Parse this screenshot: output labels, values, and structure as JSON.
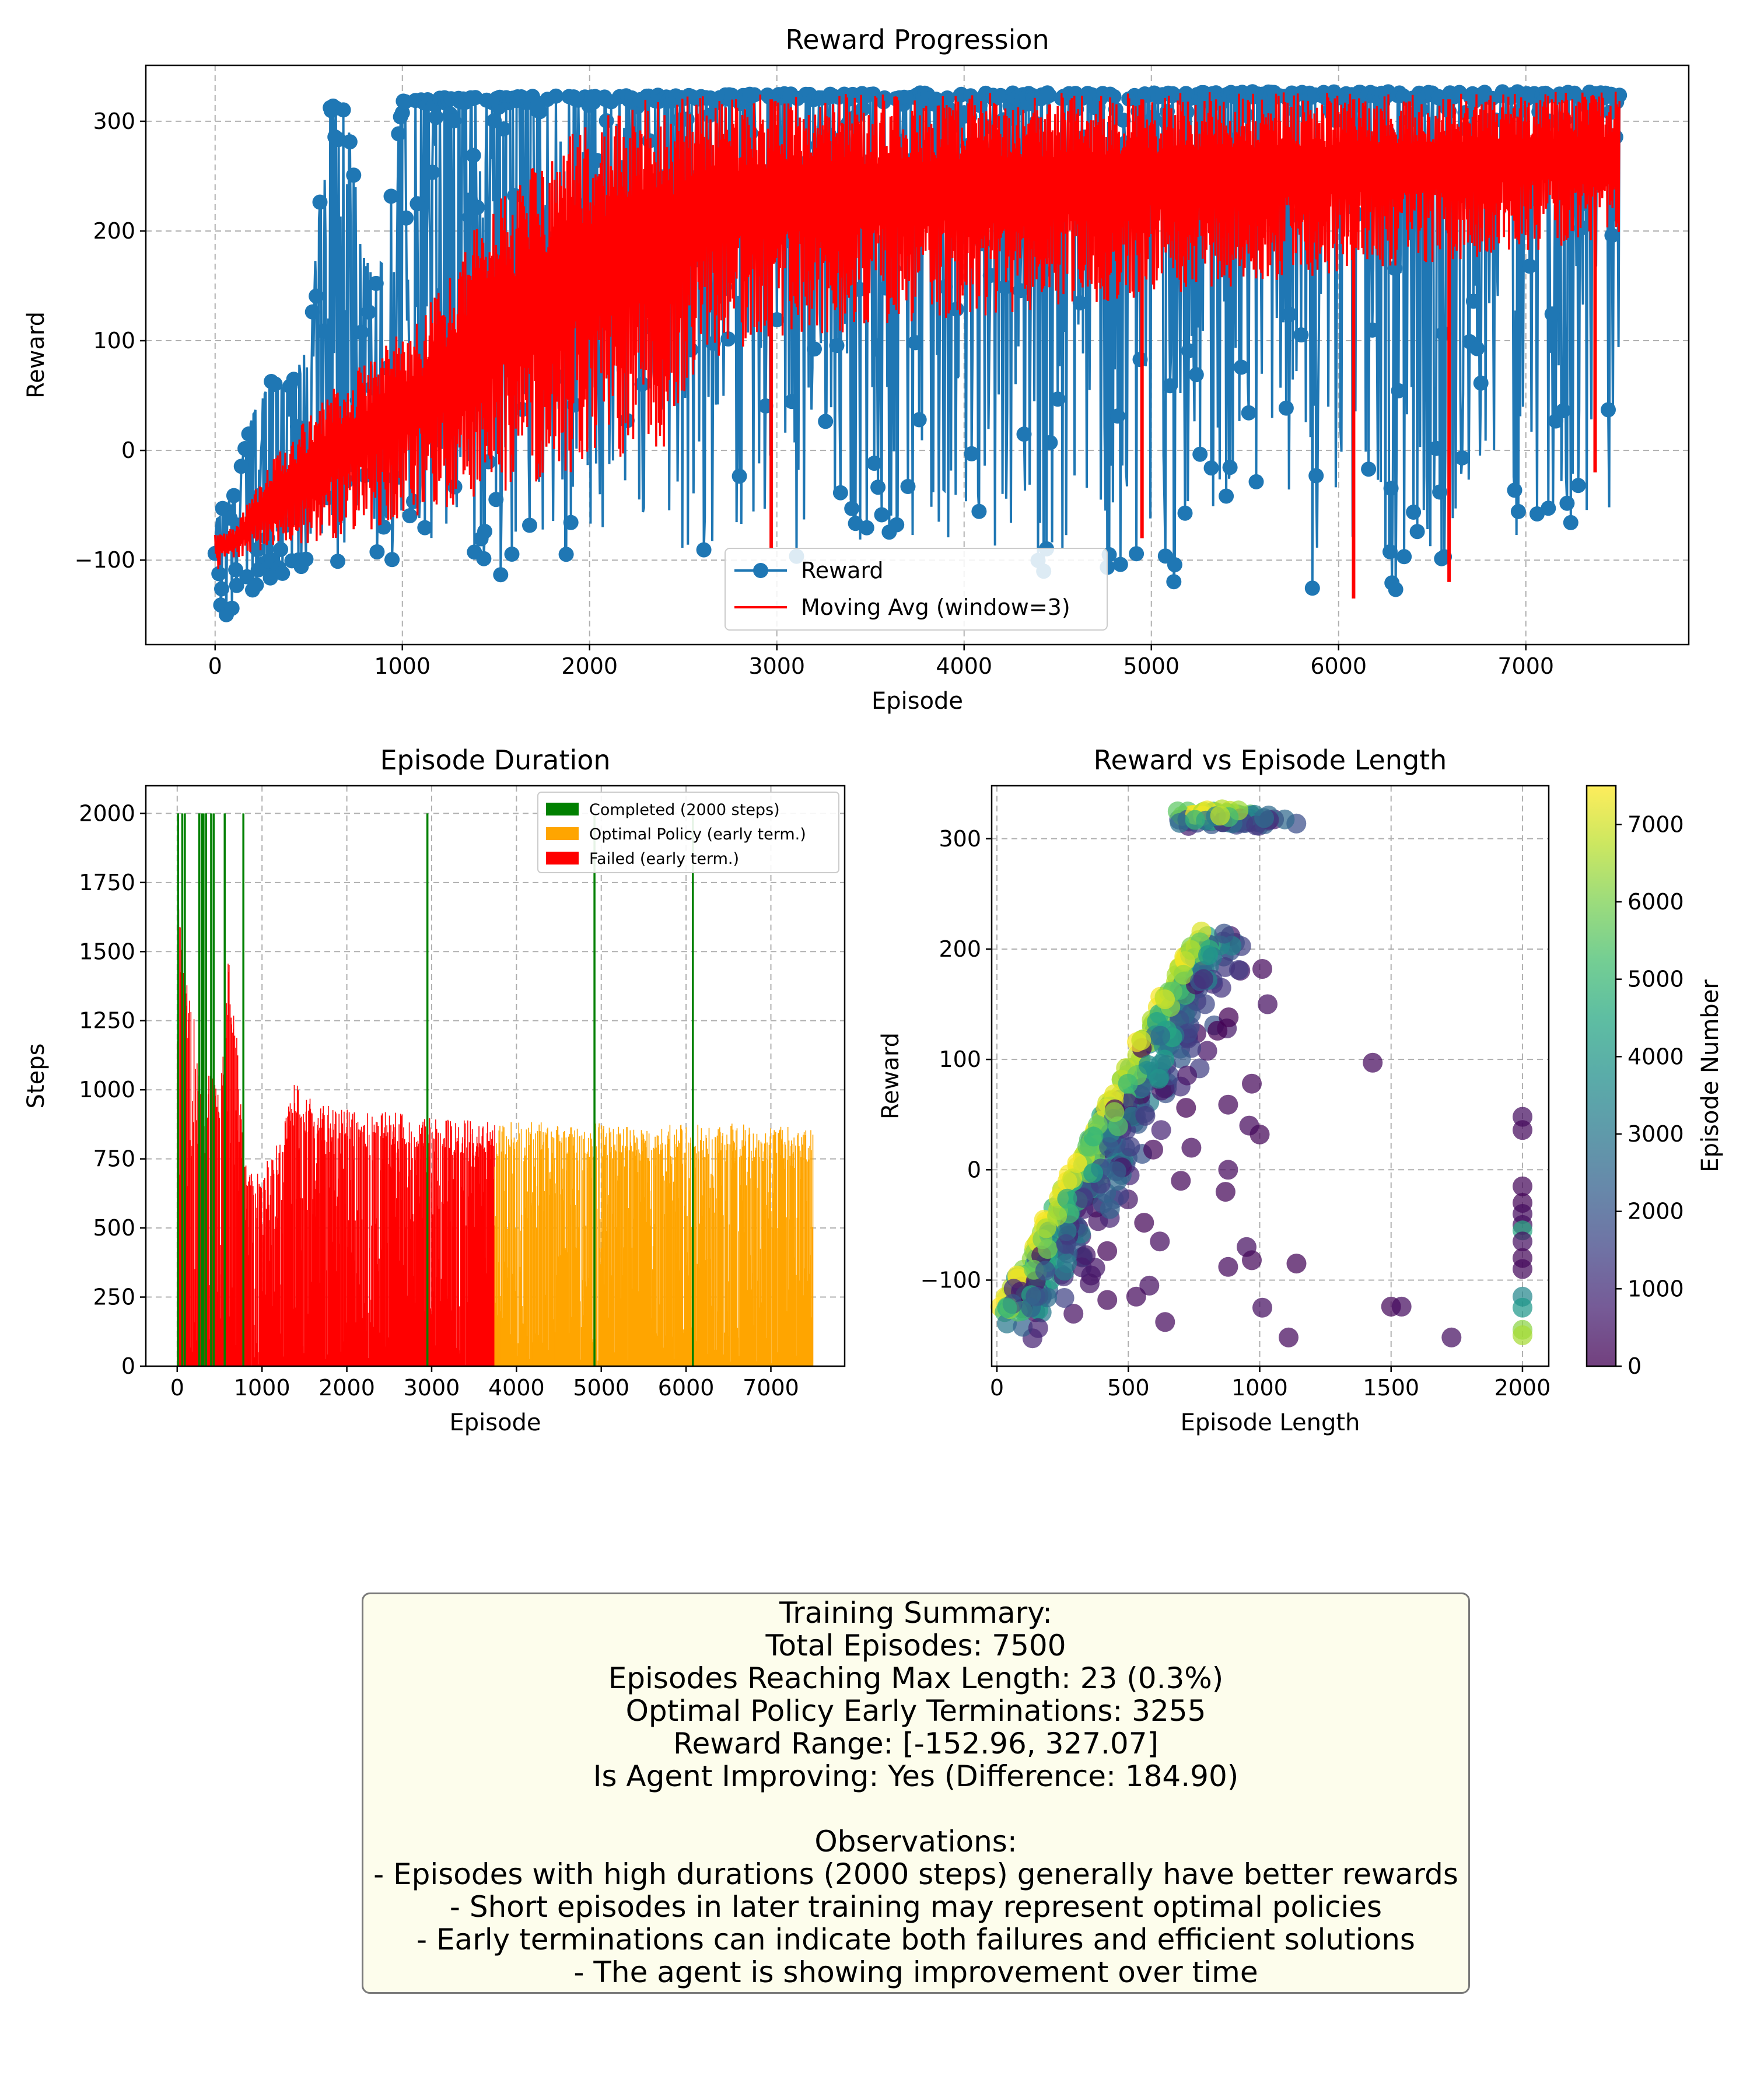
{
  "chart_data": [
    {
      "type": "line",
      "title": "Reward Progression",
      "xlabel": "Episode",
      "ylabel": "Reward",
      "xlim": [
        -370,
        7870
      ],
      "ylim": [
        -177,
        351
      ],
      "xticks": [
        0,
        1000,
        2000,
        3000,
        4000,
        5000,
        6000,
        7000
      ],
      "yticks": [
        -100,
        0,
        100,
        200,
        300
      ],
      "grid": true,
      "legend_position": "bottom-center",
      "series": [
        {
          "name": "Reward",
          "color": "#1f77b4",
          "marker": "circle",
          "x": [
            0,
            100,
            200,
            300,
            400,
            500,
            600,
            650,
            700,
            800,
            900,
            1000,
            1100,
            1200,
            1300,
            1400,
            1500,
            1700,
            2000,
            2500,
            3000,
            3500,
            4000,
            4500,
            5000,
            5500,
            6000,
            6500,
            7000,
            7500
          ],
          "mean": [
            -100,
            -95,
            -85,
            -70,
            -55,
            -40,
            -25,
            -10,
            0,
            20,
            35,
            50,
            65,
            80,
            95,
            110,
            120,
            140,
            160,
            185,
            200,
            210,
            220,
            225,
            230,
            240,
            245,
            250,
            255,
            260
          ],
          "min": [
            -152,
            -150,
            -130,
            -120,
            -110,
            -105,
            -100,
            -125,
            -100,
            -100,
            -100,
            -100,
            -100,
            -100,
            -100,
            -100,
            -118,
            -100,
            -95,
            -90,
            -125,
            -90,
            -80,
            -122,
            -152,
            -80,
            -148,
            -125,
            -80,
            -55
          ],
          "max": [
            -60,
            -40,
            35,
            65,
            60,
            100,
            312,
            318,
            312,
            170,
            175,
            320,
            320,
            322,
            322,
            322,
            322,
            323,
            323,
            324,
            325,
            326,
            326,
            326,
            326,
            327,
            327,
            327,
            327,
            327
          ]
        },
        {
          "name": "Moving Avg (window=3)",
          "color": "#ff0000",
          "marker": "none",
          "x": [
            0,
            100,
            200,
            300,
            400,
            500,
            600,
            700,
            800,
            900,
            1000,
            1100,
            1200,
            1300,
            1400,
            1500,
            1600,
            1700,
            1800,
            1900,
            2000,
            2100,
            2200,
            2400,
            2500,
            2600,
            3000,
            3500,
            4000,
            4500,
            5000,
            5500,
            6000,
            6500,
            7000,
            7500
          ],
          "min": [
            -110,
            -100,
            -95,
            -90,
            -85,
            -85,
            -80,
            -80,
            -75,
            -70,
            -65,
            -60,
            -55,
            -50,
            -45,
            -40,
            -35,
            -30,
            -25,
            -20,
            -15,
            -10,
            -5,
            0,
            50,
            80,
            100,
            110,
            120,
            130,
            140,
            150,
            160,
            170,
            180,
            190
          ],
          "max": [
            -75,
            -70,
            -40,
            -10,
            10,
            35,
            55,
            70,
            80,
            100,
            110,
            120,
            150,
            170,
            210,
            230,
            240,
            260,
            270,
            290,
            300,
            310,
            320,
            322,
            323,
            324,
            325,
            325,
            326,
            326,
            326,
            327,
            327,
            327,
            327,
            327
          ],
          "dips": [
            {
              "x": 2970,
              "y": -90
            },
            {
              "x": 6080,
              "y": -135
            },
            {
              "x": 6590,
              "y": -120
            },
            {
              "x": 7370,
              "y": -20
            },
            {
              "x": 4950,
              "y": -80
            }
          ]
        }
      ]
    },
    {
      "type": "bar",
      "title": "Episode Duration",
      "xlabel": "Episode",
      "ylabel": "Steps",
      "xlim": [
        -370,
        7870
      ],
      "ylim": [
        0,
        2100
      ],
      "xticks": [
        0,
        1000,
        2000,
        3000,
        4000,
        5000,
        6000,
        7000
      ],
      "yticks": [
        0,
        250,
        500,
        750,
        1000,
        1250,
        1500,
        1750,
        2000
      ],
      "grid": true,
      "legend_position": "top-right",
      "legend": [
        {
          "label": "Completed (2000 steps)",
          "color": "#008000"
        },
        {
          "label": "Optimal Policy (early term.)",
          "color": "#ffa500"
        },
        {
          "label": "Failed (early term.)",
          "color": "#ff0000"
        }
      ],
      "series": [
        {
          "name": "Failed (early term.)",
          "color": "#ff0000",
          "x": [
            0,
            100,
            200,
            300,
            400,
            500,
            600,
            700,
            800,
            900,
            1000,
            1200,
            1400,
            1500,
            2000,
            2500,
            3000,
            3500,
            3745
          ],
          "envelope": [
            1750,
            1550,
            1300,
            900,
            1150,
            1000,
            1500,
            1200,
            750,
            700,
            720,
            820,
            1050,
            980,
            930,
            920,
            900,
            890,
            880
          ]
        },
        {
          "name": "Optimal Policy (early term.)",
          "color": "#ffa500",
          "x": [
            3745,
            4000,
            4500,
            5000,
            5500,
            6000,
            6500,
            7000,
            7500
          ],
          "envelope": [
            880,
            890,
            880,
            880,
            870,
            875,
            880,
            870,
            870
          ]
        },
        {
          "name": "Completed (2000 steps)",
          "color": "#008000",
          "x": [
            10,
            60,
            90,
            260,
            290,
            310,
            340,
            400,
            430,
            560,
            780,
            2950,
            4920,
            6080
          ],
          "values": [
            2000,
            2000,
            2000,
            2000,
            2000,
            2000,
            2000,
            2000,
            2000,
            2000,
            2000,
            2000,
            2000,
            2000
          ]
        }
      ]
    },
    {
      "type": "scatter",
      "title": "Reward vs Episode Length",
      "xlabel": "Episode Length",
      "ylabel": "Reward",
      "colorbar_label": "Episode Number",
      "colormap": "viridis",
      "xlim": [
        -20,
        2100
      ],
      "ylim": [
        -178,
        348
      ],
      "xticks": [
        0,
        500,
        1000,
        1500,
        2000
      ],
      "yticks": [
        -100,
        0,
        100,
        200,
        300
      ],
      "colorbar_ticks": [
        0,
        1000,
        2000,
        3000,
        4000,
        5000,
        6000,
        7000
      ],
      "colorbar_range": [
        0,
        7500
      ],
      "grid": true,
      "clusters": [
        {
          "name": "main diagonal",
          "x_range": [
            40,
            800
          ],
          "y_range": [
            -125,
            220
          ]
        },
        {
          "name": "top cluster",
          "x_range": [
            680,
            1220
          ],
          "y_range": [
            308,
            328
          ]
        },
        {
          "name": "max length column",
          "x": 2000,
          "y_range": [
            -152,
            48
          ]
        }
      ],
      "outliers": [
        {
          "x": 1430,
          "y": 97,
          "episode": 200
        },
        {
          "x": 1030,
          "y": 150,
          "episode": 300
        },
        {
          "x": 1010,
          "y": 182,
          "episode": 200
        },
        {
          "x": 970,
          "y": 78,
          "episode": 150
        },
        {
          "x": 1000,
          "y": 32,
          "episode": 100
        },
        {
          "x": 960,
          "y": 40,
          "episode": 200
        },
        {
          "x": 880,
          "y": 59,
          "episode": 150
        },
        {
          "x": 870,
          "y": -20,
          "episode": 100
        },
        {
          "x": 880,
          "y": 0,
          "episode": 200
        },
        {
          "x": 950,
          "y": -70,
          "episode": 300
        },
        {
          "x": 880,
          "y": -88,
          "episode": 200
        },
        {
          "x": 970,
          "y": -82,
          "episode": 150
        },
        {
          "x": 1140,
          "y": -85,
          "episode": 100
        },
        {
          "x": 1010,
          "y": -125,
          "episode": 300
        },
        {
          "x": 1110,
          "y": -152,
          "episode": 200
        },
        {
          "x": 1500,
          "y": -124,
          "episode": 150
        },
        {
          "x": 1540,
          "y": -124,
          "episode": 250
        },
        {
          "x": 1730,
          "y": -152,
          "episode": 300
        },
        {
          "x": 640,
          "y": -138,
          "episode": 200
        },
        {
          "x": 620,
          "y": -65,
          "episode": 250
        },
        {
          "x": 530,
          "y": -115,
          "episode": 200
        },
        {
          "x": 560,
          "y": -48,
          "episode": 100
        },
        {
          "x": 420,
          "y": -118,
          "episode": 150
        },
        {
          "x": 580,
          "y": -105,
          "episode": 300
        },
        {
          "x": 740,
          "y": 20,
          "episode": 200
        },
        {
          "x": 700,
          "y": -10,
          "episode": 150
        }
      ]
    }
  ],
  "summary": {
    "lines": [
      "Training Summary:",
      "Total Episodes: 7500",
      "Episodes Reaching Max Length: 23 (0.3%)",
      "Optimal Policy Early Terminations: 3255",
      "Reward Range: [-152.96, 327.07]",
      "Is Agent Improving: Yes (Difference: 184.90)",
      "",
      "Observations:",
      "- Episodes with high durations (2000 steps) generally have better rewards",
      "- Short episodes in later training may represent optimal policies",
      "- Early terminations can indicate both failures and efficient solutions",
      "- The agent is showing improvement over time"
    ]
  }
}
